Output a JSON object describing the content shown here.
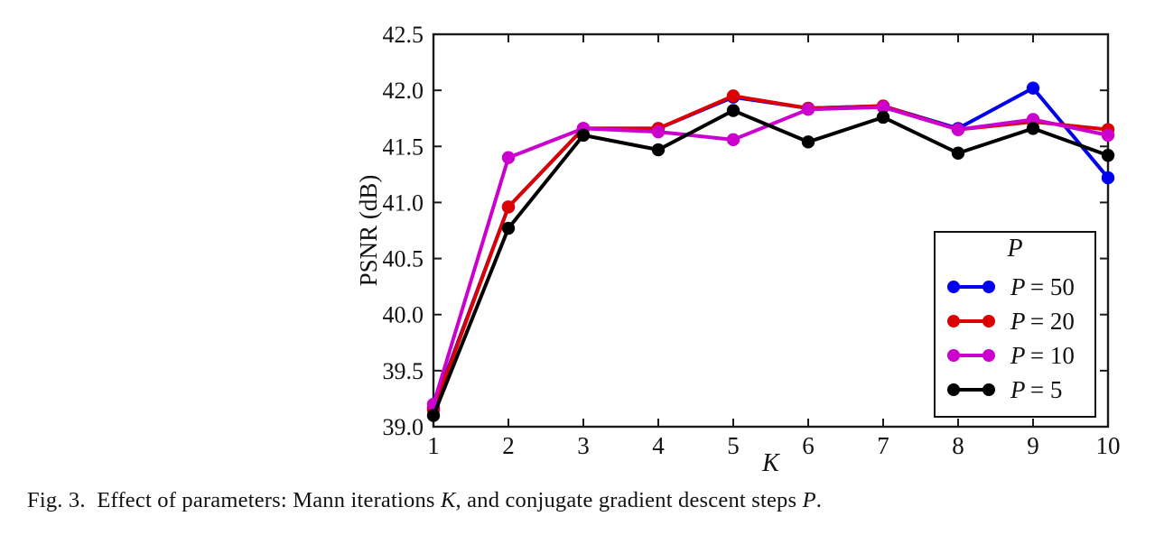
{
  "figure": {
    "caption_segments": [
      {
        "text": "Fig. 3.  Effect of parameters: Mann iterations ",
        "italic": false
      },
      {
        "text": "K",
        "italic": true
      },
      {
        "text": ", and conjugate gradient descent steps ",
        "italic": false
      },
      {
        "text": "P",
        "italic": true
      },
      {
        "text": ".",
        "italic": false
      }
    ]
  },
  "chart_data": {
    "type": "line",
    "title": "",
    "xlabel": "K",
    "ylabel": "PSNR (dB)",
    "xlim": [
      1,
      10
    ],
    "ylim": [
      39.0,
      42.5
    ],
    "xticks": [
      1,
      2,
      3,
      4,
      5,
      6,
      7,
      8,
      9,
      10
    ],
    "yticks": [
      39.0,
      39.5,
      40.0,
      40.5,
      41.0,
      41.5,
      42.0,
      42.5
    ],
    "grid": false,
    "axis_color": "#1a1a1a",
    "x": [
      1,
      2,
      3,
      4,
      5,
      6,
      7,
      8,
      9,
      10
    ],
    "series": [
      {
        "name": "P = 50",
        "color": "#0000ee",
        "values": [
          39.17,
          40.96,
          41.66,
          41.66,
          41.94,
          41.84,
          41.86,
          41.66,
          42.02,
          41.22
        ]
      },
      {
        "name": "P = 20",
        "color": "#dd0000",
        "values": [
          39.15,
          40.96,
          41.66,
          41.66,
          41.95,
          41.84,
          41.86,
          41.65,
          41.72,
          41.65
        ]
      },
      {
        "name": "P = 10",
        "color": "#cc00cc",
        "values": [
          39.2,
          41.4,
          41.66,
          41.63,
          41.56,
          41.83,
          41.85,
          41.65,
          41.74,
          41.6
        ]
      },
      {
        "name": "P = 5",
        "color": "#000000",
        "values": [
          39.1,
          40.77,
          41.6,
          41.47,
          41.82,
          41.54,
          41.76,
          41.44,
          41.66,
          41.42
        ]
      }
    ],
    "legend": {
      "title": "P",
      "position": "lower right",
      "entries": [
        "P = 50",
        "P = 20",
        "P = 10",
        "P = 5"
      ]
    }
  }
}
